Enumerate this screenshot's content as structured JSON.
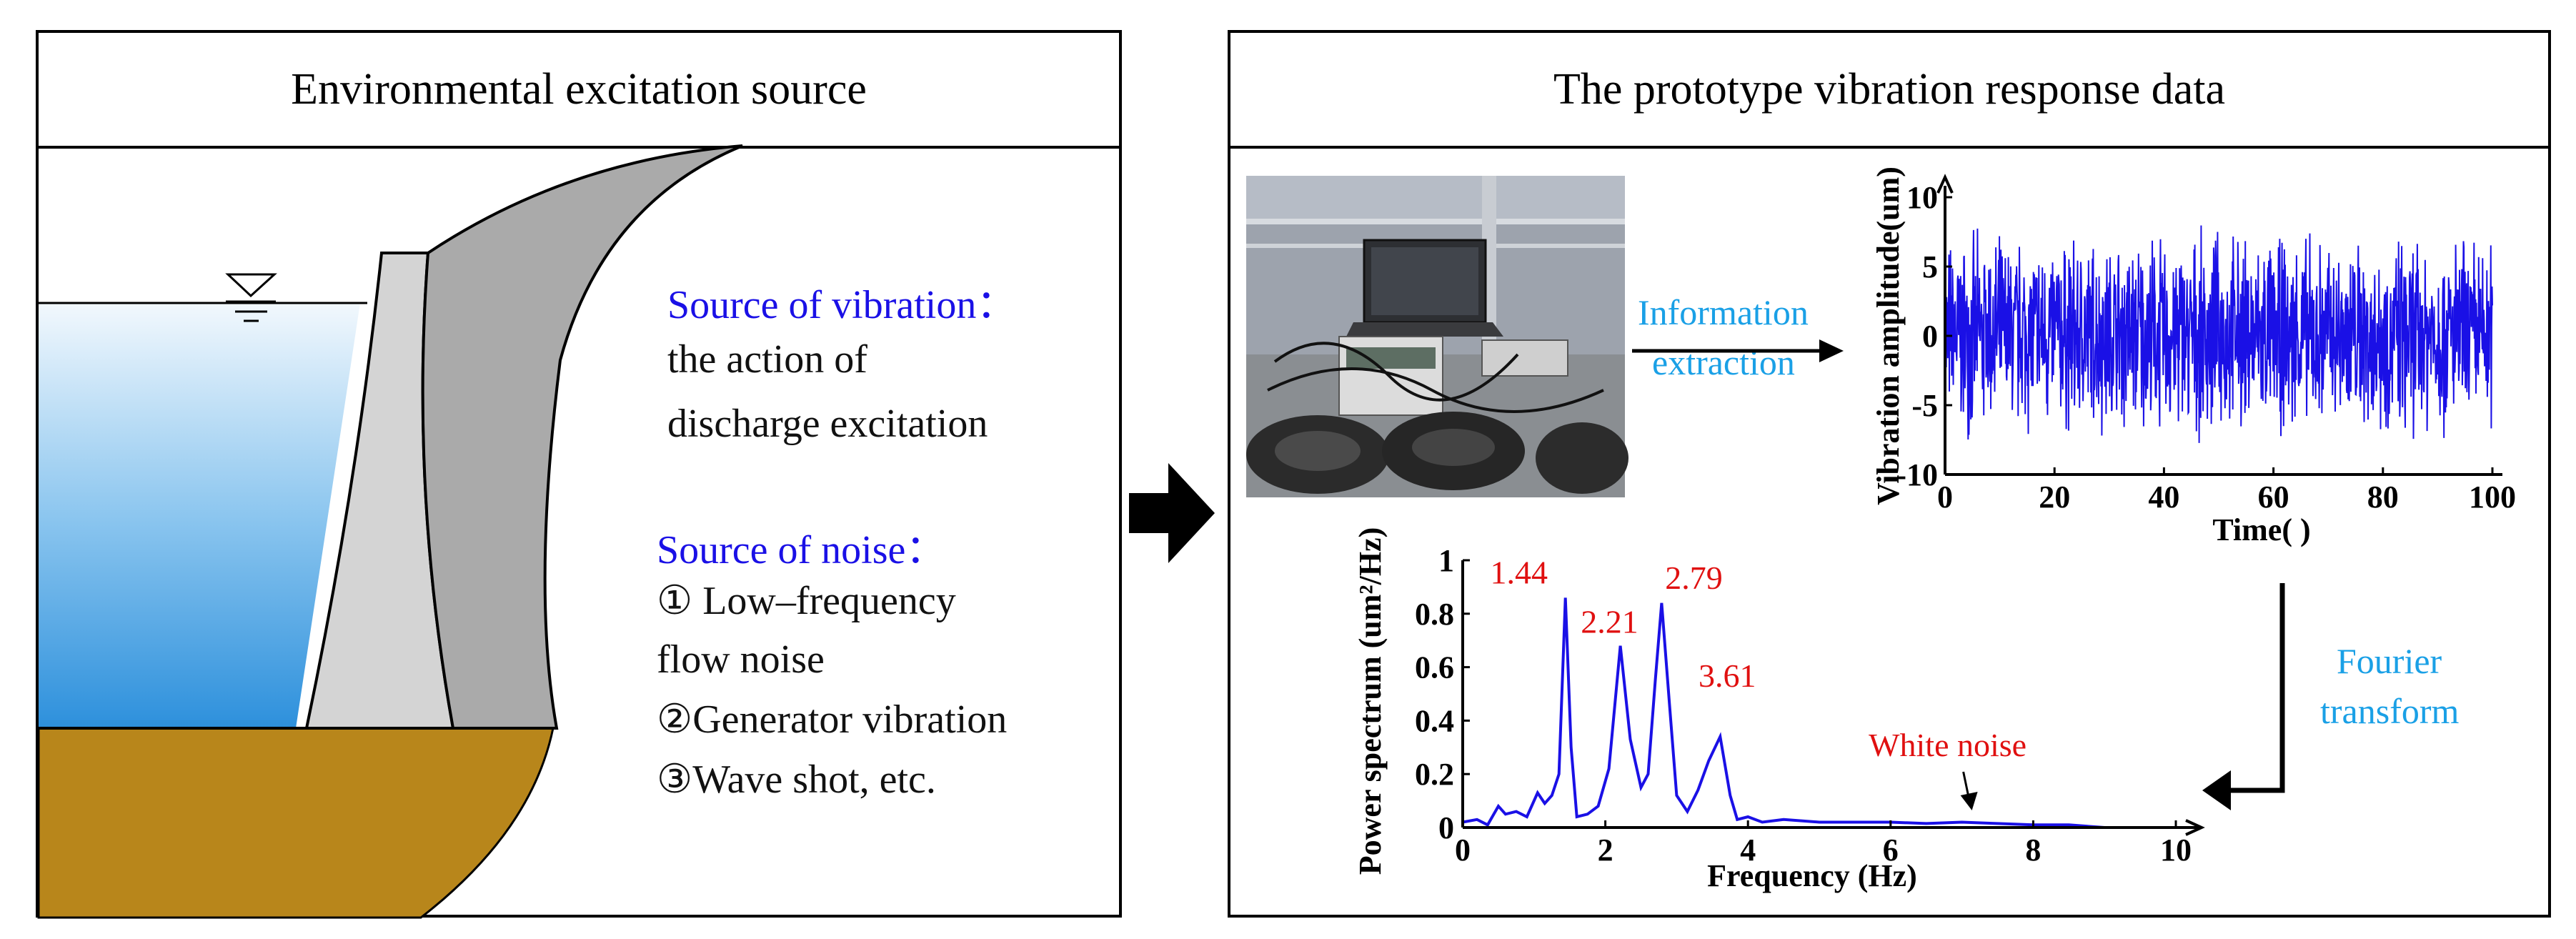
{
  "left_panel": {
    "title": "Environmental excitation source",
    "vibration_heading": "Source of vibration：",
    "vibration_lines": [
      "the action of",
      "discharge excitation"
    ],
    "noise_heading": "Source of noise：",
    "noise_lines": [
      "① Low–frequency",
      "flow noise",
      "②Generator vibration",
      "③Wave shot, etc."
    ]
  },
  "right_panel": {
    "title": "The prototype vibration response data",
    "arrow_label_1": "Information",
    "arrow_label_2": "extraction",
    "fourier_label_1": "Fourier",
    "fourier_label_2": "transform"
  },
  "chart_data": [
    {
      "type": "line",
      "title": "",
      "xlabel": "Time( )",
      "ylabel": "Vibration amplitude(um)",
      "xlim": [
        0,
        100
      ],
      "ylim": [
        -10,
        10
      ],
      "x_ticks": [
        "0",
        "20",
        "40",
        "60",
        "80",
        "100"
      ],
      "y_ticks": [
        "10",
        "5",
        "0",
        "-5",
        "-10"
      ],
      "series": [
        {
          "name": "vibration signal",
          "color": "#1a10e6",
          "description_values": "random noise, amplitude mostly within -8 to 8"
        }
      ]
    },
    {
      "type": "line",
      "title": "",
      "xlabel": "Frequency (Hz)",
      "ylabel": "Power spectrum (um²/Hz)",
      "xlim": [
        0,
        10
      ],
      "ylim": [
        0,
        1
      ],
      "x_ticks": [
        "0",
        "2",
        "4",
        "6",
        "8",
        "10"
      ],
      "y_ticks": [
        "1",
        "0.8",
        "0.6",
        "0.4",
        "0.2",
        "0"
      ],
      "series": [
        {
          "name": "power spectrum",
          "color": "#1a10e6",
          "x": [
            0,
            0.2,
            0.35,
            0.5,
            0.6,
            0.75,
            0.9,
            1.05,
            1.15,
            1.25,
            1.35,
            1.44,
            1.52,
            1.6,
            1.75,
            1.9,
            2.05,
            2.21,
            2.35,
            2.5,
            2.6,
            2.7,
            2.79,
            2.9,
            3.0,
            3.15,
            3.3,
            3.45,
            3.61,
            3.75,
            3.85,
            4.0,
            4.2,
            4.5,
            5.0,
            5.5,
            6.0,
            6.5,
            7.0,
            7.5,
            8.0,
            8.5,
            9.0,
            10.0
          ],
          "values": [
            0.02,
            0.03,
            0.01,
            0.08,
            0.05,
            0.06,
            0.04,
            0.13,
            0.09,
            0.12,
            0.2,
            0.86,
            0.3,
            0.04,
            0.05,
            0.08,
            0.22,
            0.68,
            0.33,
            0.15,
            0.2,
            0.55,
            0.84,
            0.46,
            0.12,
            0.06,
            0.14,
            0.25,
            0.34,
            0.12,
            0.03,
            0.04,
            0.02,
            0.03,
            0.02,
            0.02,
            0.02,
            0.015,
            0.02,
            0.015,
            0.01,
            0.01,
            0.0,
            0.0
          ]
        }
      ],
      "annotations": [
        {
          "text": "1.44",
          "x": 1.44,
          "y": 0.86
        },
        {
          "text": "2.21",
          "x": 2.21,
          "y": 0.68
        },
        {
          "text": "2.79",
          "x": 2.79,
          "y": 0.84
        },
        {
          "text": "3.61",
          "x": 3.61,
          "y": 0.34
        },
        {
          "text": "White noise",
          "x": 6.9,
          "y": 0.1
        }
      ]
    }
  ]
}
